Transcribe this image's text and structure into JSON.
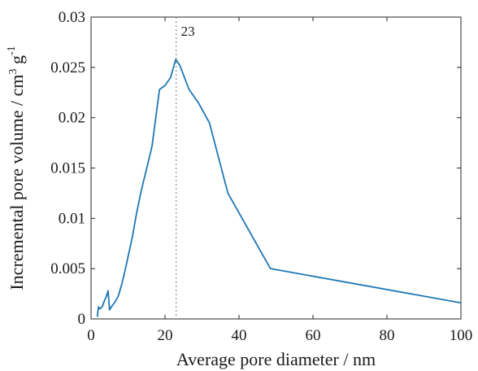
{
  "chart_data": {
    "type": "line",
    "title": "",
    "xlabel": "Average pore diameter / nm",
    "ylabel_main": "Incremental pore volume / cm",
    "ylabel_sup1": "3",
    "ylabel_mid": " g",
    "ylabel_sup2": "-1",
    "xlim": [
      0,
      100
    ],
    "ylim": [
      0,
      0.03
    ],
    "x_ticks": [
      0,
      20,
      40,
      60,
      80,
      100
    ],
    "x_tick_labels": [
      "0",
      "20",
      "40",
      "60",
      "80",
      "100"
    ],
    "y_ticks": [
      0,
      0.005,
      0.01,
      0.015,
      0.02,
      0.025,
      0.03
    ],
    "y_tick_labels": [
      "0",
      "0.005",
      "0.01",
      "0.015",
      "0.02",
      "0.025",
      "0.03"
    ],
    "grid": false,
    "line_color": "#1f77b4",
    "series": [
      {
        "x": [
          1.7,
          2.0,
          2.4,
          3.0,
          3.6,
          4.1,
          4.6,
          5.0,
          5.5,
          6.5,
          7.3,
          8.2,
          9.0,
          10.2,
          11.2,
          12.3,
          13.6,
          15.2,
          16.5,
          18.5,
          20.0,
          21.5,
          22.9,
          24.0,
          26.5,
          29.0,
          32.0,
          37.0,
          48.5,
          100.0
        ],
        "y": [
          0.0002,
          0.0012,
          0.001,
          0.0012,
          0.0018,
          0.0022,
          0.0028,
          0.0009,
          0.0012,
          0.0017,
          0.0022,
          0.0033,
          0.0045,
          0.0065,
          0.0082,
          0.0105,
          0.0128,
          0.0152,
          0.0172,
          0.0228,
          0.0232,
          0.024,
          0.0258,
          0.0252,
          0.0228,
          0.0215,
          0.0195,
          0.0125,
          0.005,
          0.0016
        ]
      }
    ],
    "reference_line": {
      "x": 23,
      "label": "23",
      "style": "dotted",
      "color": "#8c8c8c"
    }
  }
}
